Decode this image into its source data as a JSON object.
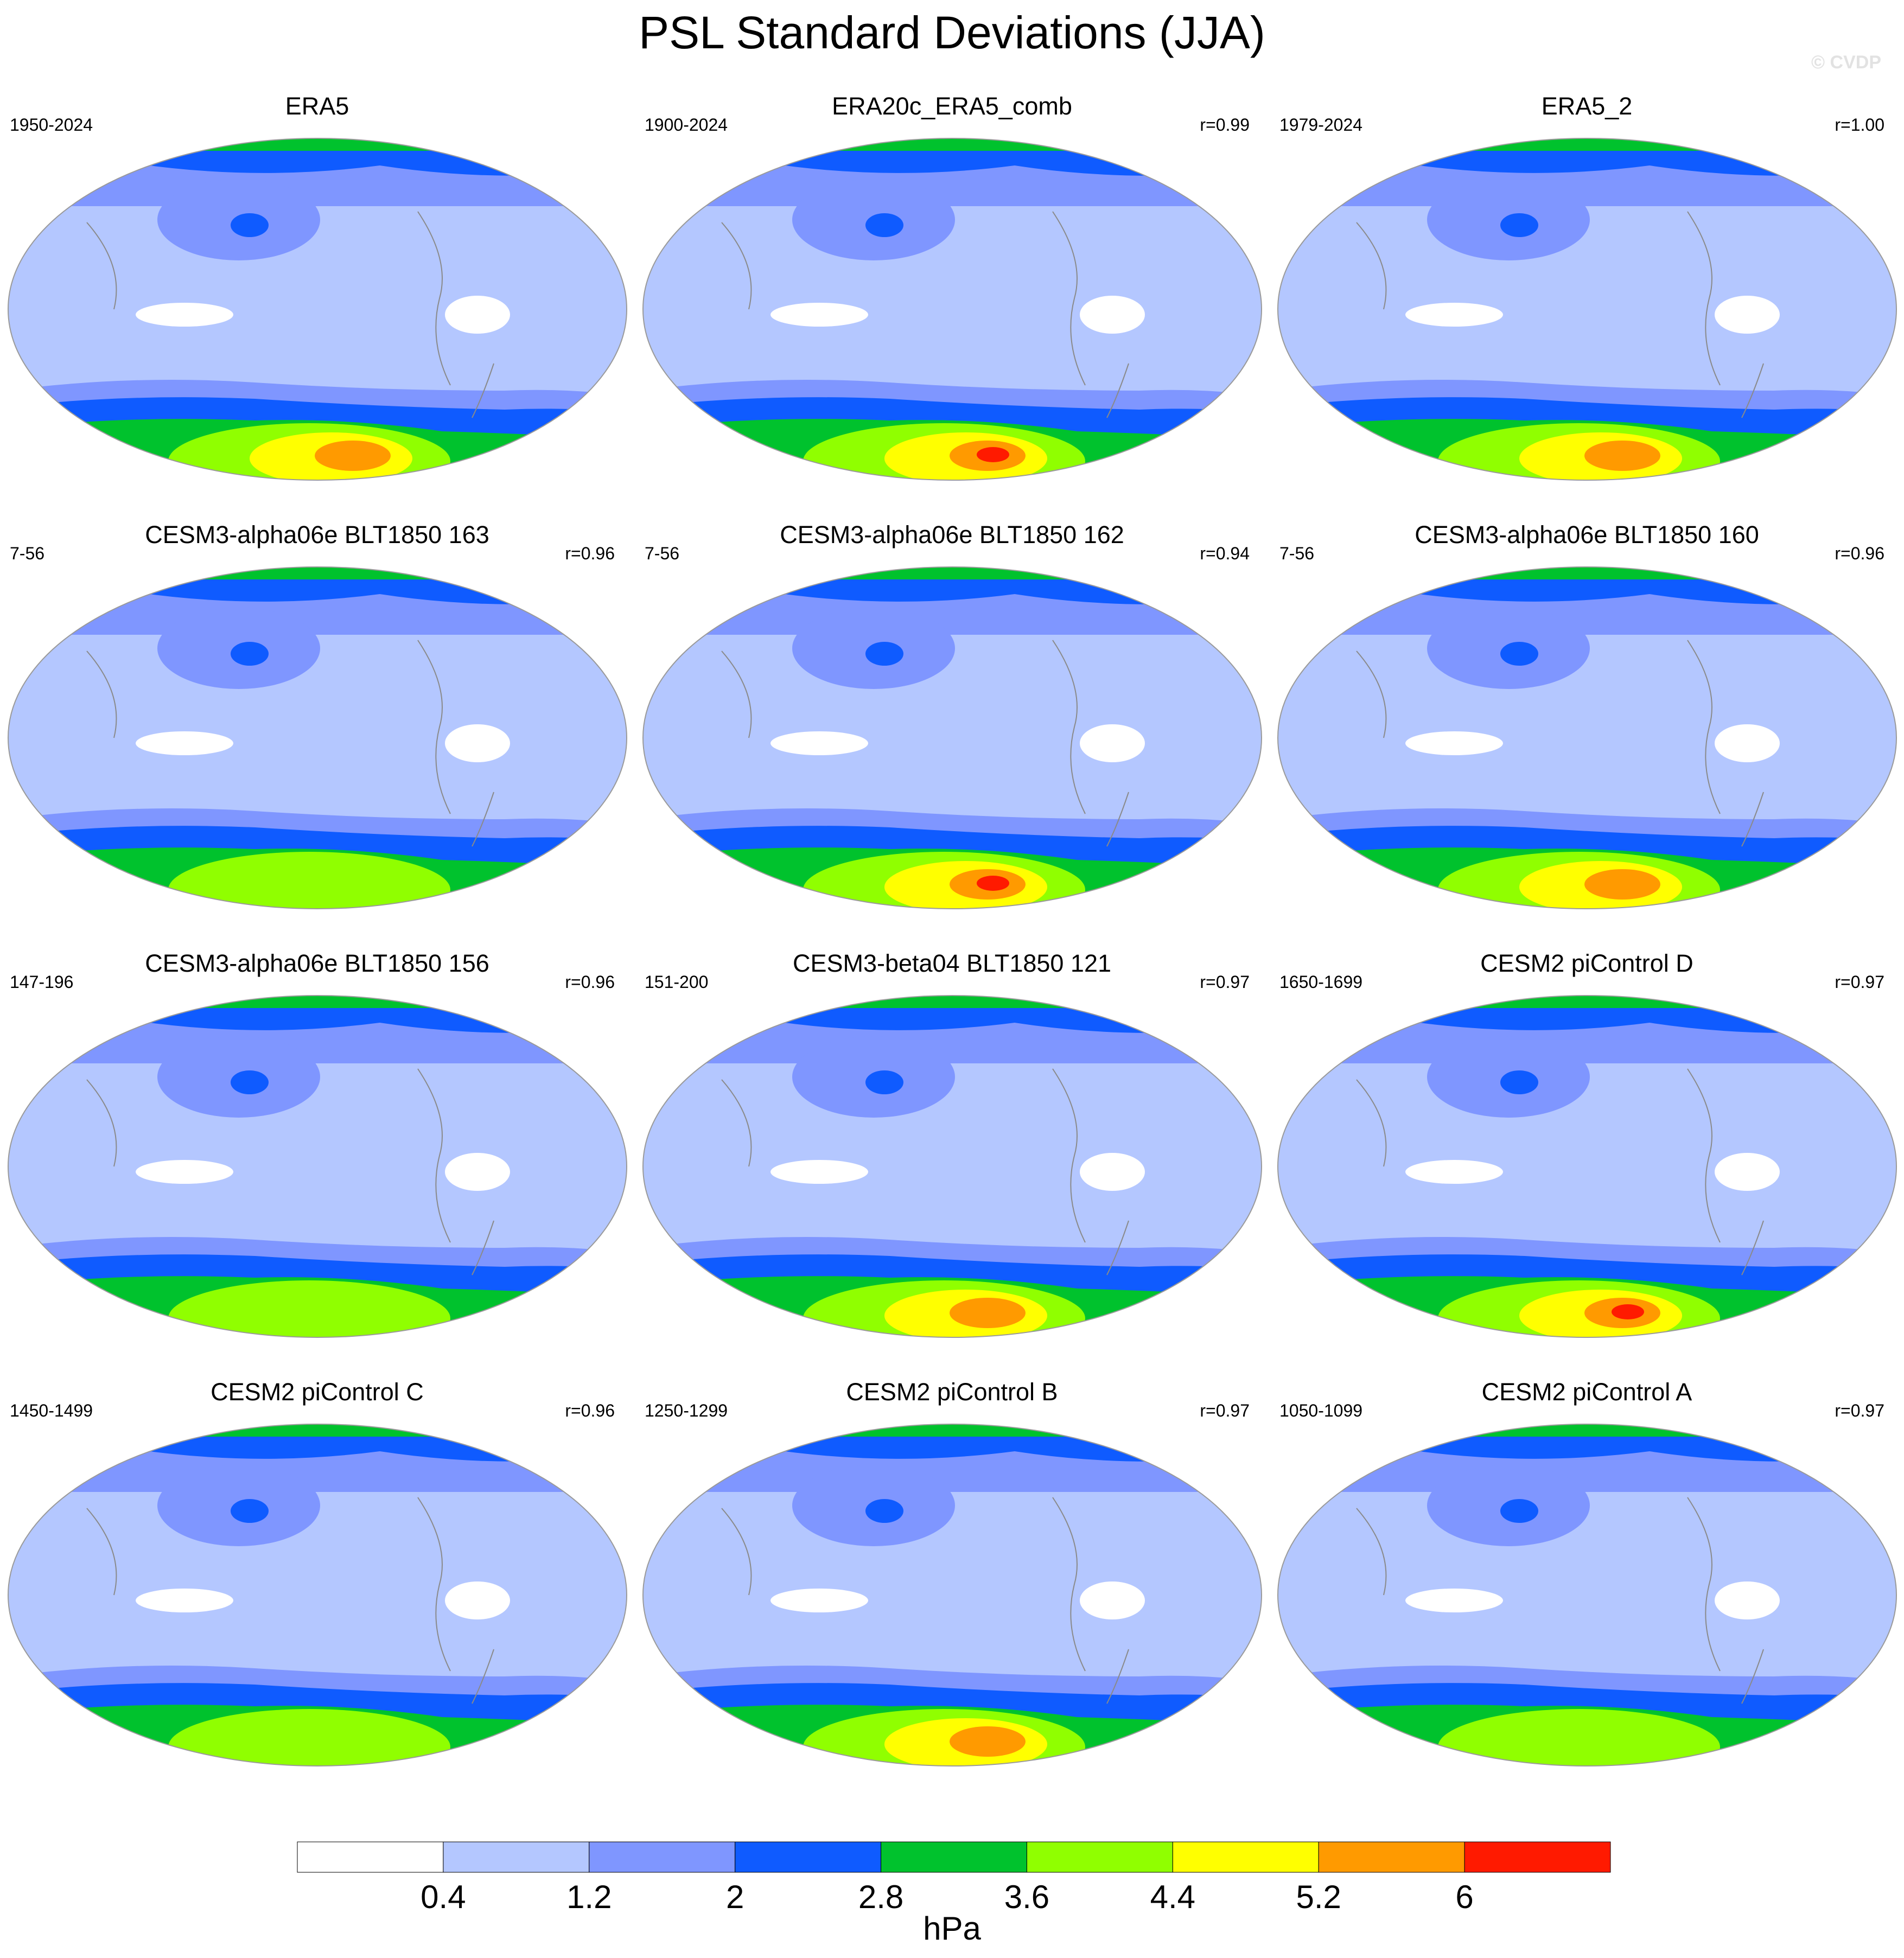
{
  "figure": {
    "title": "PSL Standard Deviations (JJA)",
    "copyright": "© CVDP"
  },
  "panels": [
    {
      "name": "ERA5",
      "years": "1950-2024",
      "r": "",
      "peak": 5
    },
    {
      "name": "ERA20c_ERA5_comb",
      "years": "1900-2024",
      "r": "r=0.99",
      "peak": 6
    },
    {
      "name": "ERA5_2",
      "years": "1979-2024",
      "r": "r=1.00",
      "peak": 5
    },
    {
      "name": "CESM3-alpha06e BLT1850 163",
      "years": "7-56",
      "r": "r=0.96",
      "peak": 4
    },
    {
      "name": "CESM3-alpha06e BLT1850 162",
      "years": "7-56",
      "r": "r=0.94",
      "peak": 6
    },
    {
      "name": "CESM3-alpha06e BLT1850 160",
      "years": "7-56",
      "r": "r=0.96",
      "peak": 5
    },
    {
      "name": "CESM3-alpha06e BLT1850 156",
      "years": "147-196",
      "r": "r=0.96",
      "peak": 4
    },
    {
      "name": "CESM3-beta04 BLT1850 121",
      "years": "151-200",
      "r": "r=0.97",
      "peak": 5
    },
    {
      "name": "CESM2 piControl D",
      "years": "1650-1699",
      "r": "r=0.97",
      "peak": 6
    },
    {
      "name": "CESM2 piControl C",
      "years": "1450-1499",
      "r": "r=0.96",
      "peak": 4
    },
    {
      "name": "CESM2 piControl B",
      "years": "1250-1299",
      "r": "r=0.97",
      "peak": 5
    },
    {
      "name": "CESM2 piControl A",
      "years": "1050-1099",
      "r": "r=0.97",
      "peak": 4
    }
  ],
  "colorbar": {
    "levels": [
      "0.4",
      "1.2",
      "2",
      "2.8",
      "3.6",
      "4.4",
      "5.2",
      "6"
    ],
    "colors": [
      "#ffffff",
      "#b4c7ff",
      "#7f96ff",
      "#0f5bff",
      "#00c22d",
      "#90ff00",
      "#ffff00",
      "#ff9a00",
      "#ff1a00"
    ],
    "unit": "hPa"
  }
}
